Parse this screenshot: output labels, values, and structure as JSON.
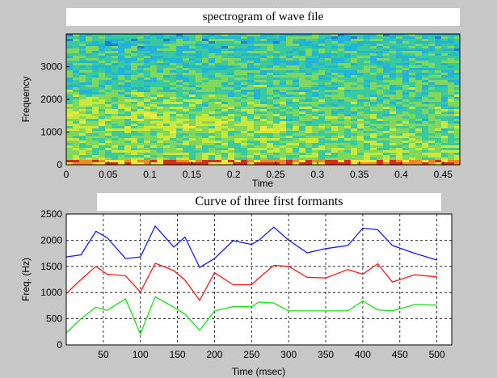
{
  "chart_data": [
    {
      "type": "heatmap",
      "title": "spectrogram of wave file",
      "xlabel": "Time",
      "ylabel": "Frequency",
      "xlim": [
        0,
        0.47
      ],
      "ylim": [
        0,
        4000
      ],
      "xticks": [
        "0",
        "0.05",
        "0.1",
        "0.15",
        "0.2",
        "0.25",
        "0.3",
        "0.35",
        "0.4",
        "0.45"
      ],
      "yticks": [
        "0",
        "1000",
        "2000",
        "3000"
      ],
      "colormap": [
        "#1e7fd8",
        "#22b4d8",
        "#38c9a0",
        "#7fd85c",
        "#c8e83a",
        "#f0e83a",
        "#f08a1e",
        "#d82a1e"
      ]
    },
    {
      "type": "line",
      "title": "Curve of three first formants",
      "xlabel": "Time (msec)",
      "ylabel": "Freq. (Hz)",
      "xlim": [
        0,
        520
      ],
      "ylim": [
        0,
        2500
      ],
      "xticks": [
        "50",
        "100",
        "150",
        "200",
        "250",
        "300",
        "350",
        "400",
        "450",
        "500"
      ],
      "yticks": [
        "0",
        "500",
        "1000",
        "1500",
        "2000",
        "2500"
      ],
      "grid": true,
      "x": [
        0,
        20,
        40,
        55,
        80,
        100,
        120,
        145,
        160,
        180,
        200,
        225,
        250,
        260,
        280,
        300,
        325,
        350,
        380,
        400,
        420,
        440,
        470,
        500
      ],
      "series": [
        {
          "color": "#1818ff",
          "values": [
            1680,
            1720,
            2170,
            2050,
            1650,
            1680,
            2270,
            1870,
            2060,
            1480,
            1650,
            1990,
            1920,
            2000,
            2250,
            2000,
            1760,
            1840,
            1900,
            2230,
            2200,
            1900,
            1750,
            1620
          ]
        },
        {
          "color": "#ff1818",
          "values": [
            980,
            1250,
            1500,
            1350,
            1320,
            1010,
            1560,
            1420,
            1240,
            850,
            1380,
            1150,
            1150,
            1280,
            1520,
            1500,
            1290,
            1280,
            1440,
            1350,
            1550,
            1200,
            1340,
            1300
          ]
        },
        {
          "color": "#18e018",
          "values": [
            230,
            500,
            720,
            660,
            880,
            210,
            920,
            720,
            590,
            280,
            650,
            730,
            730,
            820,
            800,
            650,
            650,
            650,
            650,
            840,
            670,
            650,
            770,
            760
          ]
        }
      ]
    }
  ]
}
